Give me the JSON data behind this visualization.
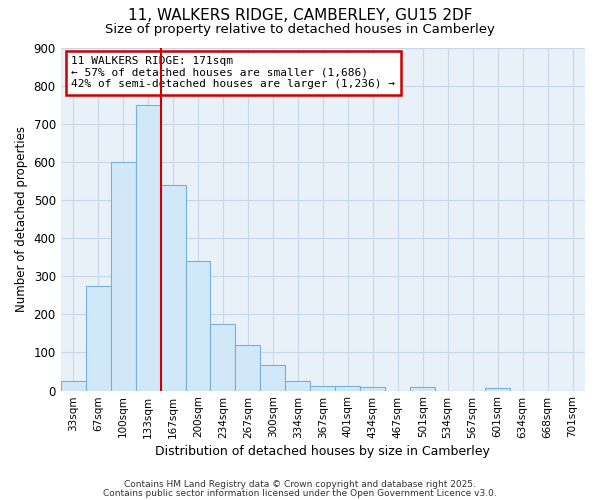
{
  "title_line1": "11, WALKERS RIDGE, CAMBERLEY, GU15 2DF",
  "title_line2": "Size of property relative to detached houses in Camberley",
  "xlabel": "Distribution of detached houses by size in Camberley",
  "ylabel": "Number of detached properties",
  "bar_color": "#d0e8f8",
  "bar_edge_color": "#7ab0d8",
  "grid_color": "#c8d8ec",
  "background_color": "#e8f0f8",
  "vline_color": "#cc0000",
  "fig_bg": "#ffffff",
  "categories": [
    "33sqm",
    "67sqm",
    "100sqm",
    "133sqm",
    "167sqm",
    "200sqm",
    "234sqm",
    "267sqm",
    "300sqm",
    "334sqm",
    "367sqm",
    "401sqm",
    "434sqm",
    "467sqm",
    "501sqm",
    "534sqm",
    "567sqm",
    "601sqm",
    "634sqm",
    "668sqm",
    "701sqm"
  ],
  "values": [
    25,
    275,
    600,
    750,
    540,
    340,
    175,
    120,
    68,
    25,
    12,
    12,
    10,
    0,
    10,
    0,
    0,
    8,
    0,
    0,
    0
  ],
  "vline_x_idx": 4,
  "annotation_text_line1": "11 WALKERS RIDGE: 171sqm",
  "annotation_text_line2": "← 57% of detached houses are smaller (1,686)",
  "annotation_text_line3": "42% of semi-detached houses are larger (1,236) →",
  "ylim": [
    0,
    900
  ],
  "yticks": [
    0,
    100,
    200,
    300,
    400,
    500,
    600,
    700,
    800,
    900
  ],
  "footer_line1": "Contains HM Land Registry data © Crown copyright and database right 2025.",
  "footer_line2": "Contains public sector information licensed under the Open Government Licence v3.0."
}
